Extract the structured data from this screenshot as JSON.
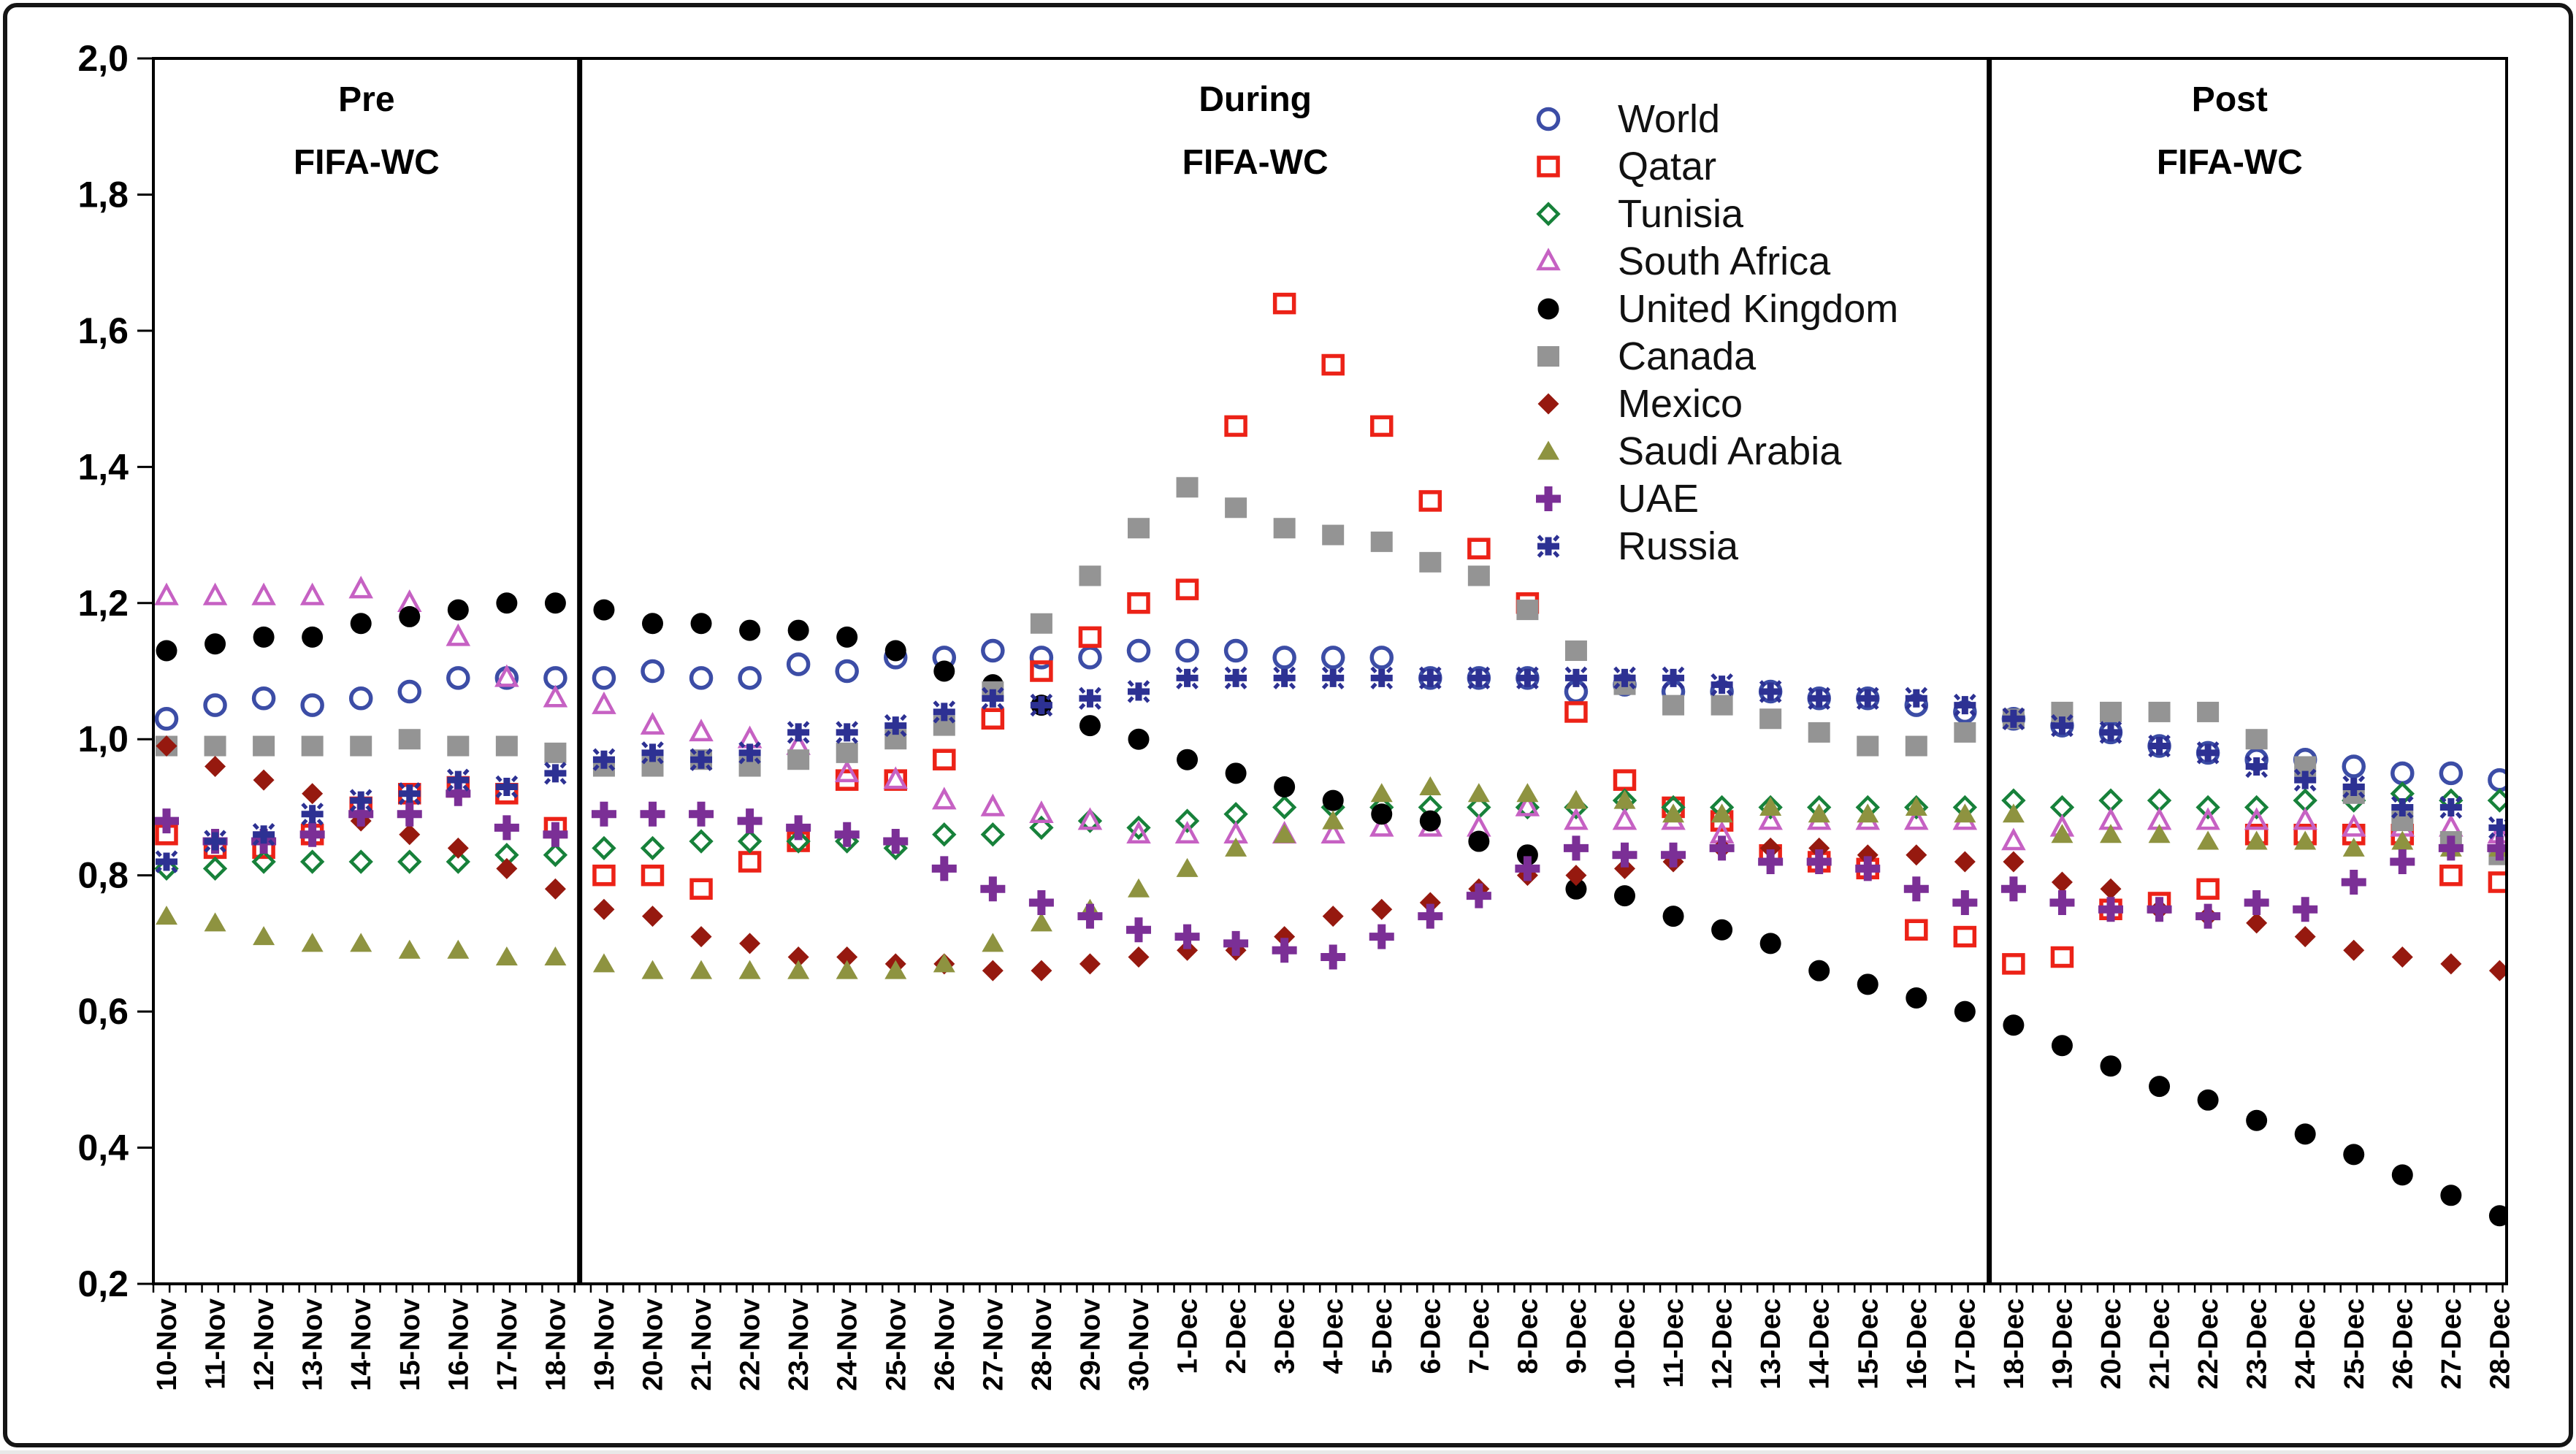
{
  "figure": {
    "background": "#ffffff",
    "outer_border_color": "#151515",
    "axis_color": "#000000",
    "text_color": "#000000"
  },
  "phase_annotations": [
    {
      "line1": "Pre",
      "line2": "FIFA-WC"
    },
    {
      "line1": "During",
      "line2": "FIFA-WC"
    },
    {
      "line1": "Post",
      "line2": "FIFA-WC"
    }
  ],
  "chart_data": {
    "type": "scatter",
    "title": "",
    "xlabel": "",
    "ylabel": "",
    "grid": false,
    "legend_position": "inside-top-right",
    "ylim": [
      0.2,
      2.0
    ],
    "ytick_step": 0.2,
    "ytick_labels": [
      "0,2",
      "0,4",
      "0,6",
      "0,8",
      "1,0",
      "1,2",
      "1,4",
      "1,6",
      "1,8",
      "2,0"
    ],
    "divider_boundaries_between": [
      [
        "18-Nov",
        "19-Nov"
      ],
      [
        "17-Dec",
        "18-Dec"
      ]
    ],
    "x_categories": [
      "10-Nov",
      "11-Nov",
      "12-Nov",
      "13-Nov",
      "14-Nov",
      "15-Nov",
      "16-Nov",
      "17-Nov",
      "18-Nov",
      "19-Nov",
      "20-Nov",
      "21-Nov",
      "22-Nov",
      "23-Nov",
      "24-Nov",
      "25-Nov",
      "26-Nov",
      "27-Nov",
      "28-Nov",
      "29-Nov",
      "30-Nov",
      "1-Dec",
      "2-Dec",
      "3-Dec",
      "4-Dec",
      "5-Dec",
      "6-Dec",
      "7-Dec",
      "8-Dec",
      "9-Dec",
      "10-Dec",
      "11-Dec",
      "12-Dec",
      "13-Dec",
      "14-Dec",
      "15-Dec",
      "16-Dec",
      "17-Dec",
      "18-Dec",
      "19-Dec",
      "20-Dec",
      "21-Dec",
      "22-Dec",
      "23-Dec",
      "24-Dec",
      "25-Dec",
      "26-Dec",
      "27-Dec",
      "28-Dec"
    ],
    "series": [
      {
        "name": "World",
        "marker": "open-circle",
        "color": "#3c4da6",
        "values": [
          1.03,
          1.05,
          1.06,
          1.05,
          1.06,
          1.07,
          1.09,
          1.09,
          1.09,
          1.09,
          1.1,
          1.09,
          1.09,
          1.11,
          1.1,
          1.12,
          1.12,
          1.13,
          1.12,
          1.12,
          1.13,
          1.13,
          1.13,
          1.12,
          1.12,
          1.12,
          1.09,
          1.09,
          1.09,
          1.07,
          1.08,
          1.07,
          1.07,
          1.07,
          1.06,
          1.06,
          1.05,
          1.04,
          1.03,
          1.02,
          1.01,
          0.99,
          0.98,
          0.97,
          0.97,
          0.96,
          0.95,
          0.95,
          0.94
        ]
      },
      {
        "name": "Qatar",
        "marker": "open-square",
        "color": "#ec2217",
        "values": [
          0.86,
          0.84,
          0.84,
          0.86,
          0.9,
          0.92,
          0.93,
          0.92,
          0.87,
          0.8,
          0.8,
          0.78,
          0.82,
          0.85,
          0.94,
          0.94,
          0.97,
          1.03,
          1.1,
          1.15,
          1.2,
          1.22,
          1.46,
          1.64,
          1.55,
          1.46,
          1.35,
          1.28,
          1.2,
          1.04,
          0.94,
          0.9,
          0.88,
          0.83,
          0.82,
          0.81,
          0.72,
          0.71,
          0.67,
          0.68,
          0.75,
          0.76,
          0.78,
          0.86,
          0.86,
          0.86,
          0.86,
          0.8,
          0.79
        ]
      },
      {
        "name": "Tunisia",
        "marker": "open-diamond",
        "color": "#17813a",
        "values": [
          0.81,
          0.81,
          0.82,
          0.82,
          0.82,
          0.82,
          0.82,
          0.83,
          0.83,
          0.84,
          0.84,
          0.85,
          0.85,
          0.85,
          0.85,
          0.84,
          0.86,
          0.86,
          0.87,
          0.88,
          0.87,
          0.88,
          0.89,
          0.9,
          0.9,
          0.9,
          0.9,
          0.9,
          0.9,
          0.9,
          0.91,
          0.9,
          0.9,
          0.9,
          0.9,
          0.9,
          0.9,
          0.9,
          0.91,
          0.9,
          0.91,
          0.91,
          0.9,
          0.9,
          0.91,
          0.91,
          0.92,
          0.91,
          0.91
        ]
      },
      {
        "name": "South Africa",
        "marker": "open-triangle",
        "color": "#c661c3",
        "values": [
          1.21,
          1.21,
          1.21,
          1.21,
          1.22,
          1.2,
          1.15,
          1.09,
          1.06,
          1.05,
          1.02,
          1.01,
          1.0,
          0.99,
          0.95,
          0.94,
          0.91,
          0.9,
          0.89,
          0.88,
          0.86,
          0.86,
          0.86,
          0.86,
          0.86,
          0.87,
          0.87,
          0.87,
          0.9,
          0.88,
          0.88,
          0.88,
          0.86,
          0.88,
          0.88,
          0.88,
          0.88,
          0.88,
          0.85,
          0.87,
          0.88,
          0.88,
          0.88,
          0.88,
          0.88,
          0.87,
          0.87,
          0.87,
          0.86
        ]
      },
      {
        "name": "United Kingdom",
        "marker": "filled-circle",
        "color": "#000000",
        "values": [
          1.13,
          1.14,
          1.15,
          1.15,
          1.17,
          1.18,
          1.19,
          1.2,
          1.2,
          1.19,
          1.17,
          1.17,
          1.16,
          1.16,
          1.15,
          1.13,
          1.1,
          1.08,
          1.05,
          1.02,
          1.0,
          0.97,
          0.95,
          0.93,
          0.91,
          0.89,
          0.88,
          0.85,
          0.83,
          0.78,
          0.77,
          0.74,
          0.72,
          0.7,
          0.66,
          0.64,
          0.62,
          0.6,
          0.58,
          0.55,
          0.52,
          0.49,
          0.47,
          0.44,
          0.42,
          0.39,
          0.36,
          0.33,
          0.3
        ]
      },
      {
        "name": "Canada",
        "marker": "filled-square",
        "color": "#949494",
        "values": [
          0.99,
          0.99,
          0.99,
          0.99,
          0.99,
          1.0,
          0.99,
          0.99,
          0.98,
          0.96,
          0.96,
          0.97,
          0.96,
          0.97,
          0.98,
          1.0,
          1.02,
          1.07,
          1.17,
          1.24,
          1.31,
          1.37,
          1.34,
          1.31,
          1.3,
          1.29,
          1.26,
          1.24,
          1.19,
          1.13,
          1.08,
          1.05,
          1.05,
          1.03,
          1.01,
          0.99,
          0.99,
          1.01,
          1.03,
          1.04,
          1.04,
          1.04,
          1.04,
          1.0,
          0.96,
          0.92,
          0.88,
          0.85,
          0.83
        ]
      },
      {
        "name": "Mexico",
        "marker": "filled-diamond",
        "color": "#96190f",
        "values": [
          0.99,
          0.96,
          0.94,
          0.92,
          0.88,
          0.86,
          0.84,
          0.81,
          0.78,
          0.75,
          0.74,
          0.71,
          0.7,
          0.68,
          0.68,
          0.67,
          0.67,
          0.66,
          0.66,
          0.67,
          0.68,
          0.69,
          0.69,
          0.71,
          0.74,
          0.75,
          0.76,
          0.78,
          0.8,
          0.8,
          0.81,
          0.82,
          0.84,
          0.84,
          0.84,
          0.83,
          0.83,
          0.82,
          0.82,
          0.79,
          0.78,
          0.75,
          0.74,
          0.73,
          0.71,
          0.69,
          0.68,
          0.67,
          0.66
        ]
      },
      {
        "name": "Saudi Arabia",
        "marker": "filled-triangle",
        "color": "#8e9340",
        "values": [
          0.74,
          0.73,
          0.71,
          0.7,
          0.7,
          0.69,
          0.69,
          0.68,
          0.68,
          0.67,
          0.66,
          0.66,
          0.66,
          0.66,
          0.66,
          0.66,
          0.67,
          0.7,
          0.73,
          0.75,
          0.78,
          0.81,
          0.84,
          0.86,
          0.88,
          0.92,
          0.93,
          0.92,
          0.92,
          0.91,
          0.91,
          0.89,
          0.89,
          0.9,
          0.89,
          0.89,
          0.9,
          0.89,
          0.89,
          0.86,
          0.86,
          0.86,
          0.85,
          0.85,
          0.85,
          0.84,
          0.85,
          0.84,
          0.84
        ]
      },
      {
        "name": "UAE",
        "marker": "plus",
        "color": "#7b2f96",
        "values": [
          0.88,
          0.85,
          0.85,
          0.86,
          0.89,
          0.89,
          0.92,
          0.87,
          0.86,
          0.89,
          0.89,
          0.89,
          0.88,
          0.87,
          0.86,
          0.85,
          0.81,
          0.78,
          0.76,
          0.74,
          0.72,
          0.71,
          0.7,
          0.69,
          0.68,
          0.71,
          0.74,
          0.77,
          0.81,
          0.84,
          0.83,
          0.83,
          0.84,
          0.82,
          0.82,
          0.81,
          0.78,
          0.76,
          0.78,
          0.76,
          0.75,
          0.75,
          0.74,
          0.76,
          0.75,
          0.79,
          0.82,
          0.84,
          0.84
        ]
      },
      {
        "name": "Russia",
        "marker": "asterisk",
        "color": "#2d3193",
        "values": [
          0.82,
          0.85,
          0.86,
          0.89,
          0.91,
          0.92,
          0.94,
          0.93,
          0.95,
          0.97,
          0.98,
          0.97,
          0.98,
          1.01,
          1.01,
          1.02,
          1.04,
          1.06,
          1.05,
          1.06,
          1.07,
          1.09,
          1.09,
          1.09,
          1.09,
          1.09,
          1.09,
          1.09,
          1.09,
          1.09,
          1.09,
          1.09,
          1.08,
          1.07,
          1.06,
          1.06,
          1.06,
          1.05,
          1.03,
          1.02,
          1.01,
          0.99,
          0.98,
          0.96,
          0.94,
          0.93,
          0.9,
          0.9,
          0.87
        ]
      }
    ]
  }
}
